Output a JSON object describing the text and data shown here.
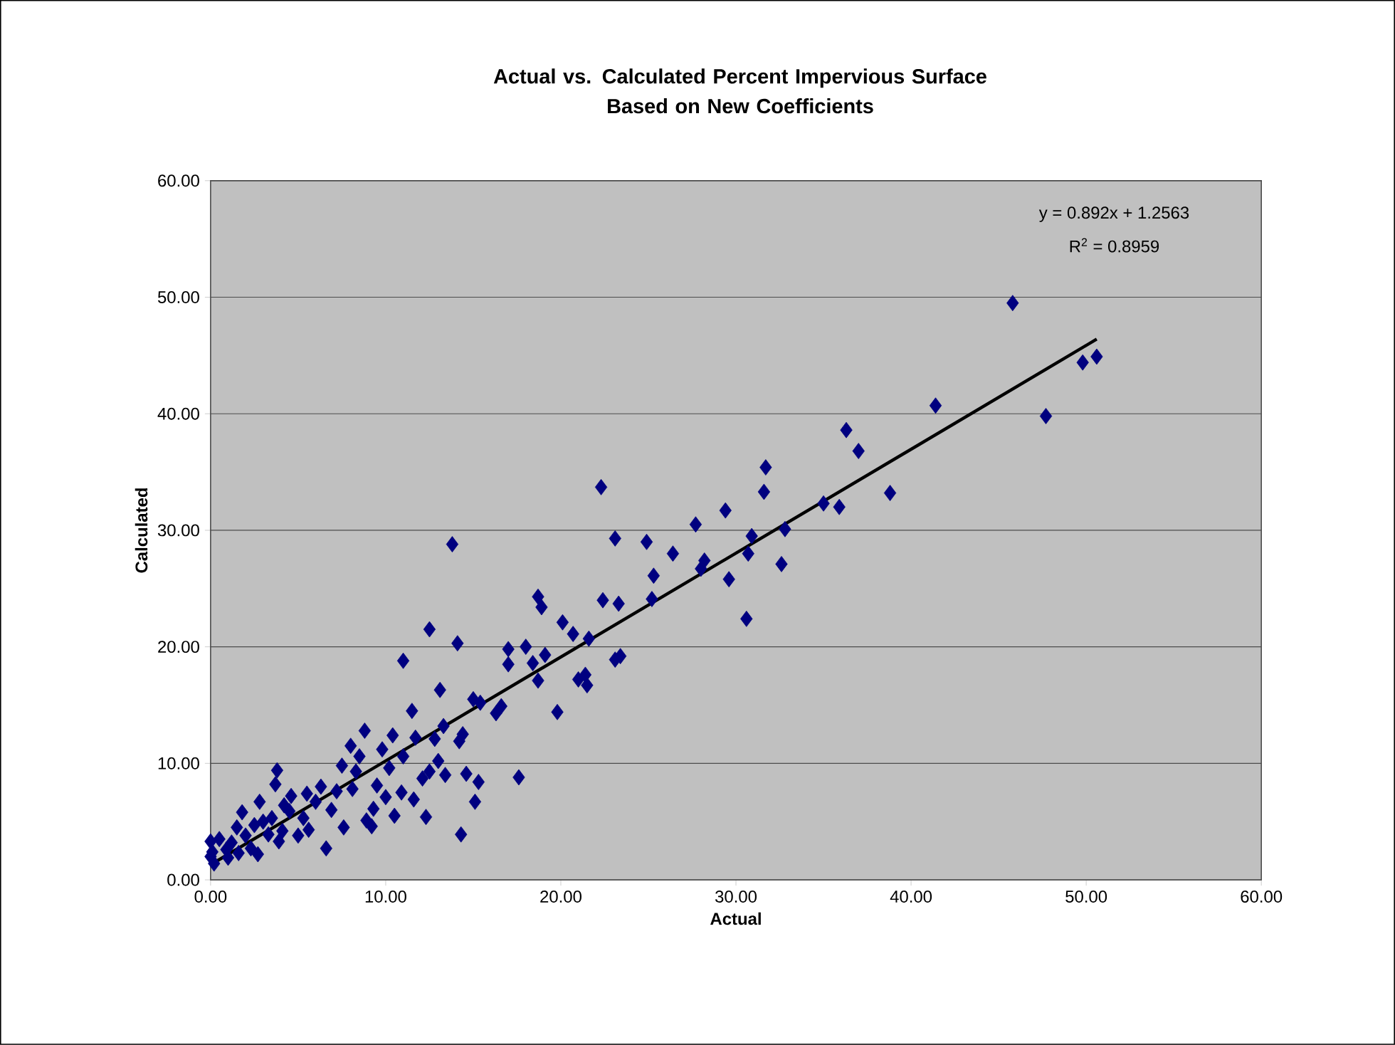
{
  "chart_data": {
    "type": "scatter",
    "title": "Actual vs. Calculated Percent Impervious Surface\nBased on New Coefficients",
    "xlabel": "Actual",
    "ylabel": "Calculated",
    "annotations": [
      "y = 0.892x + 1.2563",
      "R$^{2}$ = 0.8959"
    ],
    "xlim": [
      0,
      60
    ],
    "ylim": [
      0,
      60
    ],
    "xticks": [
      {
        "value": 0,
        "label": "0.00"
      },
      {
        "value": 10,
        "label": "10.00"
      },
      {
        "value": 20,
        "label": "20.00"
      },
      {
        "value": 30,
        "label": "30.00"
      },
      {
        "value": 40,
        "label": "40.00"
      },
      {
        "value": 50,
        "label": "50.00"
      },
      {
        "value": 60,
        "label": "60.00"
      }
    ],
    "yticks": [
      {
        "value": 0,
        "label": "0.00"
      },
      {
        "value": 10,
        "label": "10.00"
      },
      {
        "value": 20,
        "label": "20.00"
      },
      {
        "value": 30,
        "label": "30.00"
      },
      {
        "value": 40,
        "label": "40.00"
      },
      {
        "value": 50,
        "label": "50.00"
      },
      {
        "value": 60,
        "label": "60.00"
      }
    ],
    "grid": "y",
    "marker": "diamond",
    "series": [
      {
        "color": "#000080",
        "x": [
          45.8,
          50.6,
          49.8,
          47.7,
          41.4,
          36.3,
          37.0,
          38.8,
          35.0,
          35.9,
          31.7,
          31.6,
          32.8,
          30.9,
          30.7,
          32.6,
          29.4,
          27.7,
          29.6,
          28.2,
          28.0,
          30.6,
          26.4,
          24.9,
          25.3,
          25.2,
          22.3,
          23.1,
          23.3,
          22.4,
          23.4,
          23.1,
          21.6,
          20.7,
          20.1,
          21.4,
          21.0,
          21.5,
          19.8,
          18.7,
          18.9,
          19.1,
          18.4,
          18.0,
          18.7,
          17.0,
          17.0,
          16.6,
          16.3,
          17.6,
          15.0,
          15.4,
          15.3,
          15.1,
          14.1,
          13.8,
          14.4,
          14.2,
          14.6,
          14.3,
          13.3,
          13.1,
          13.0,
          13.4,
          12.5,
          12.8,
          12.5,
          12.3,
          11.7,
          11.5,
          11.0,
          11.0,
          10.9,
          10.5,
          10.4,
          10.2,
          9.8,
          9.5,
          9.3,
          9.2,
          8.8,
          8.5,
          8.3,
          8.0,
          8.1,
          7.6,
          7.5,
          7.2,
          6.6,
          6.3,
          6.0,
          5.5,
          5.3,
          5.0,
          4.6,
          4.5,
          4.2,
          3.8,
          3.7,
          3.5,
          3.3,
          3.0,
          2.8,
          2.5,
          2.3,
          2.0,
          1.8,
          1.6,
          1.5,
          1.2,
          0.9,
          0.5,
          0.2,
          0.1,
          0.0,
          0.0,
          2.7,
          3.9,
          5.6,
          6.9,
          4.1,
          1.0,
          8.9,
          10.0,
          11.6,
          12.1
        ],
        "values": [
          49.5,
          44.9,
          44.4,
          39.8,
          40.7,
          38.6,
          36.8,
          33.2,
          32.3,
          32.0,
          35.4,
          33.3,
          30.1,
          29.5,
          28.0,
          27.1,
          31.7,
          30.5,
          25.8,
          27.4,
          26.7,
          22.4,
          28.0,
          29.0,
          26.1,
          24.1,
          33.7,
          29.3,
          23.7,
          24.0,
          19.2,
          18.9,
          20.7,
          21.1,
          22.1,
          17.6,
          17.2,
          16.7,
          14.4,
          24.3,
          23.4,
          19.3,
          18.6,
          20.0,
          17.1,
          19.8,
          18.5,
          14.9,
          14.3,
          8.8,
          15.5,
          15.2,
          8.4,
          6.7,
          20.3,
          28.8,
          12.5,
          11.9,
          9.1,
          3.9,
          13.2,
          16.3,
          10.2,
          9.0,
          21.5,
          12.1,
          9.3,
          5.4,
          12.2,
          14.5,
          18.8,
          10.6,
          7.5,
          5.5,
          12.4,
          9.6,
          11.2,
          8.1,
          6.1,
          4.6,
          12.8,
          10.6,
          9.3,
          11.5,
          7.8,
          4.5,
          9.8,
          7.6,
          2.7,
          8.0,
          6.7,
          7.4,
          5.3,
          3.8,
          7.2,
          5.9,
          6.4,
          9.4,
          8.2,
          5.3,
          3.9,
          5.0,
          6.7,
          4.7,
          2.7,
          3.8,
          5.8,
          2.3,
          4.5,
          3.2,
          2.6,
          3.5,
          1.4,
          2.4,
          3.3,
          2.0,
          2.2,
          3.3,
          4.3,
          6.0,
          4.2,
          1.9,
          5.1,
          7.1,
          6.9,
          8.7
        ]
      },
      {
        "type": "line",
        "color": "#000000",
        "marker": "none",
        "line_style": "solid",
        "x": [
          0,
          50.6
        ],
        "values": [
          1.3,
          46.4
        ]
      }
    ]
  }
}
